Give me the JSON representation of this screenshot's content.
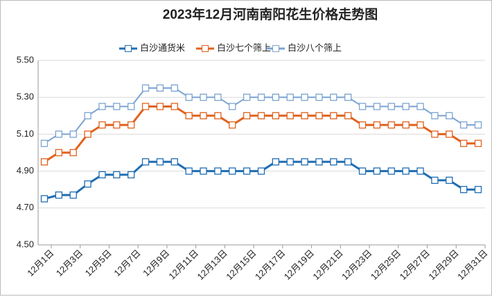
{
  "chart_data": {
    "type": "line",
    "title": "2023年12月河南南阳花生价格走势图",
    "categories": [
      "12月1日",
      null,
      "12月3日",
      null,
      "12月5日",
      null,
      "12月7日",
      null,
      "12月9日",
      null,
      "12月11日",
      null,
      "12月13日",
      null,
      "12月15日",
      null,
      "12月17日",
      null,
      "12月19日",
      null,
      "12月21日",
      null,
      "12月23日",
      null,
      "12月25日",
      null,
      "12月27日",
      null,
      "12月29日",
      null,
      "12月31日"
    ],
    "series": [
      {
        "name": "白沙通货米",
        "color": "#1f6db3",
        "values": [
          4.75,
          4.77,
          4.77,
          4.83,
          4.88,
          4.88,
          4.88,
          4.95,
          4.95,
          4.95,
          4.9,
          4.9,
          4.9,
          4.9,
          4.9,
          4.9,
          4.95,
          4.95,
          4.95,
          4.95,
          4.95,
          4.95,
          4.9,
          4.9,
          4.9,
          4.9,
          4.9,
          4.85,
          4.85,
          4.8,
          4.8
        ]
      },
      {
        "name": "白沙七个筛上",
        "color": "#e0621e",
        "values": [
          4.95,
          5.0,
          5.0,
          5.1,
          5.15,
          5.15,
          5.15,
          5.25,
          5.25,
          5.25,
          5.2,
          5.2,
          5.2,
          5.15,
          5.2,
          5.2,
          5.2,
          5.2,
          5.2,
          5.2,
          5.2,
          5.2,
          5.15,
          5.15,
          5.15,
          5.15,
          5.15,
          5.1,
          5.1,
          5.05,
          5.05
        ]
      },
      {
        "name": "白沙八个筛上",
        "color": "#7ba3d0",
        "values": [
          5.05,
          5.1,
          5.1,
          5.2,
          5.25,
          5.25,
          5.25,
          5.35,
          5.35,
          5.35,
          5.3,
          5.3,
          5.3,
          5.25,
          5.3,
          5.3,
          5.3,
          5.3,
          5.3,
          5.3,
          5.3,
          5.3,
          5.25,
          5.25,
          5.25,
          5.25,
          5.25,
          5.2,
          5.2,
          5.15,
          5.15
        ]
      }
    ],
    "ylim": [
      4.5,
      5.5
    ],
    "yticks": [
      {
        "value": 4.5,
        "label": "4.50"
      },
      {
        "value": 4.7,
        "label": "4.70"
      },
      {
        "value": 4.9,
        "label": "4.90"
      },
      {
        "value": 5.1,
        "label": "5.10"
      },
      {
        "value": 5.3,
        "label": "5.30"
      },
      {
        "value": 5.5,
        "label": "5.50"
      }
    ],
    "grid": true,
    "legend": "top"
  }
}
